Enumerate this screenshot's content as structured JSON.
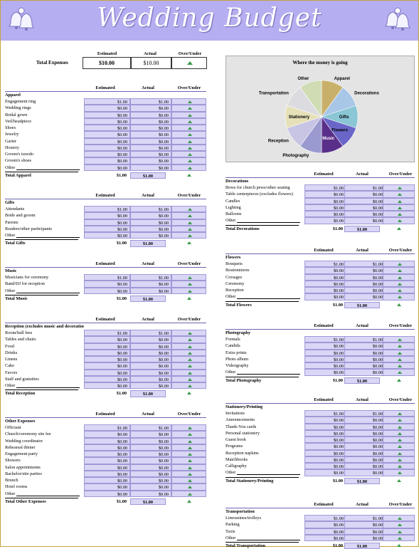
{
  "header": {
    "title": "Wedding Budget"
  },
  "summary": {
    "col_estimated": "Estimated",
    "col_actual": "Actual",
    "col_over_under": "Over/Under",
    "label": "Total Expenses",
    "estimated": "$10.00",
    "actual": "$10.00"
  },
  "chart_data": {
    "type": "pie",
    "title": "Where the money is going",
    "categories": [
      "Apparel",
      "Decorations",
      "Gifts",
      "Flowers",
      "Music",
      "Photography",
      "Reception",
      "Stationery",
      "Transportation",
      "Other"
    ],
    "values": [
      1,
      1,
      1,
      1,
      1,
      1,
      1,
      1,
      1,
      1
    ],
    "colors": [
      "#c9b06a",
      "#a8c6e8",
      "#8ac6d4",
      "#6a66c8",
      "#5a2f8a",
      "#9a9ad0",
      "#c8c4e4",
      "#e6e0b8",
      "#dcdce0",
      "#cfdcb4"
    ]
  },
  "sections": [
    {
      "col": 0,
      "top": 119,
      "title": "Apparel",
      "cols": [
        "Estimated",
        "Actual",
        "Over/Under"
      ],
      "items": [
        {
          "n": "Engagement ring",
          "e": "$1.00",
          "a": "$1.00"
        },
        {
          "n": "Wedding rings",
          "e": "$0.00",
          "a": "$0.00"
        },
        {
          "n": "Bridal gown",
          "e": "$0.00",
          "a": "$0.00"
        },
        {
          "n": "Veil/headpiece",
          "e": "$0.00",
          "a": "$0.00"
        },
        {
          "n": "Shoes",
          "e": "$0.00",
          "a": "$0.00"
        },
        {
          "n": "Jewelry",
          "e": "$0.00",
          "a": "$0.00"
        },
        {
          "n": "Garter",
          "e": "$0.00",
          "a": "$0.00"
        },
        {
          "n": "Hosiery",
          "e": "$0.00",
          "a": "$0.00"
        },
        {
          "n": "Groom's tuxedo",
          "e": "$0.00",
          "a": "$0.00"
        },
        {
          "n": "Groom's shoes",
          "e": "$0.00",
          "a": "$0.00"
        },
        {
          "n": "Other",
          "e": "$0.00",
          "a": "$0.00"
        }
      ],
      "total_label": "Total Apparel",
      "total_e": "$1.00",
      "total_a": "$1.00"
    },
    {
      "col": 0,
      "top": 270,
      "title": "Gifts",
      "cols": [
        "Estimated",
        "Actual",
        "Over/Under"
      ],
      "items": [
        {
          "n": "Attendants",
          "e": "$1.00",
          "a": "$1.00"
        },
        {
          "n": "Bride and groom",
          "e": "$0.00",
          "a": "$0.00"
        },
        {
          "n": "Parents",
          "e": "$0.00",
          "a": "$0.00"
        },
        {
          "n": "Readers/other participants",
          "e": "$0.00",
          "a": "$0.00"
        },
        {
          "n": "Other",
          "e": "$0.00",
          "a": "$0.00"
        }
      ],
      "total_label": "Total Gifts",
      "total_e": "$1.00",
      "total_a": "$1.00"
    },
    {
      "col": 0,
      "top": 366,
      "title": "Music",
      "cols": [
        "Estimated",
        "Actual",
        "Over/Under"
      ],
      "items": [
        {
          "n": "Musicians for ceremony",
          "e": "$1.00",
          "a": "$1.00"
        },
        {
          "n": "Band/DJ for reception",
          "e": "$0.00",
          "a": "$0.00"
        },
        {
          "n": "Other",
          "e": "$0.00",
          "a": "$0.00"
        }
      ],
      "total_label": "Total Music",
      "total_e": "$1.00",
      "total_a": "$1.00"
    },
    {
      "col": 0,
      "top": 444,
      "title": "Reception (excludes music and decorations)",
      "cols": [
        "Estimated",
        "Actual",
        "Over/Under"
      ],
      "items": [
        {
          "n": "Room/hall fees",
          "e": "$1.00",
          "a": "$1.00"
        },
        {
          "n": "Tables and chairs",
          "e": "$0.00",
          "a": "$0.00"
        },
        {
          "n": "Food",
          "e": "$0.00",
          "a": "$0.00"
        },
        {
          "n": "Drinks",
          "e": "$0.00",
          "a": "$0.00"
        },
        {
          "n": "Linens",
          "e": "$0.00",
          "a": "$0.00"
        },
        {
          "n": "Cake",
          "e": "$0.00",
          "a": "$0.00"
        },
        {
          "n": "Favors",
          "e": "$0.00",
          "a": "$0.00"
        },
        {
          "n": "Staff and gratuities",
          "e": "$0.00",
          "a": "$0.00"
        },
        {
          "n": "Other",
          "e": "$0.00",
          "a": "$0.00"
        }
      ],
      "total_label": "Total Reception",
      "total_e": "$1.00",
      "total_a": "$1.00"
    },
    {
      "col": 0,
      "top": 577,
      "title": "Other Expenses",
      "cols": [
        "Estimated",
        "Actual",
        "Over/Under"
      ],
      "items": [
        {
          "n": "Officiant",
          "e": "$1.00",
          "a": "$1.00"
        },
        {
          "n": "Church/ceremony site fee",
          "e": "$0.00",
          "a": "$0.00"
        },
        {
          "n": "Wedding coordinator",
          "e": "$0.00",
          "a": "$0.00"
        },
        {
          "n": "Rehearsal dinner",
          "e": "$0.00",
          "a": "$0.00"
        },
        {
          "n": "Engagement party",
          "e": "$0.00",
          "a": "$0.00"
        },
        {
          "n": "Showers",
          "e": "$0.00",
          "a": "$0.00"
        },
        {
          "n": "Salon appointments",
          "e": "$0.00",
          "a": "$0.00"
        },
        {
          "n": "Bachelor/ette parties",
          "e": "$0.00",
          "a": "$0.00"
        },
        {
          "n": "Brunch",
          "e": "$0.00",
          "a": "$0.00"
        },
        {
          "n": "Hotel rooms",
          "e": "$0.00",
          "a": "$0.00"
        },
        {
          "n": "Other",
          "e": "$0.00",
          "a": "$0.00"
        }
      ],
      "total_label": "Total Other Expenses",
      "total_e": "$1.00",
      "total_a": "$1.00"
    },
    {
      "col": 1,
      "top": 240,
      "title": "Decorations",
      "cols": [
        "Estimated",
        "Actual",
        "Over/Under"
      ],
      "items": [
        {
          "n": "Bows for church pews/other seating",
          "e": "$1.00",
          "a": "$1.00"
        },
        {
          "n": "Table centerpieces (excludes flowers)",
          "e": "$0.00",
          "a": "$0.00"
        },
        {
          "n": "Candles",
          "e": "$0.00",
          "a": "$0.00"
        },
        {
          "n": "Lighting",
          "e": "$0.00",
          "a": "$0.00"
        },
        {
          "n": "Balloons",
          "e": "$0.00",
          "a": "$0.00"
        },
        {
          "n": "Other",
          "e": "$0.00",
          "a": "$0.00"
        }
      ],
      "total_label": "Total Decorations",
      "total_e": "$1.00",
      "total_a": "$1.00"
    },
    {
      "col": 1,
      "top": 347,
      "title": "Flowers",
      "cols": [
        "Estimated",
        "Actual",
        "Over/Under"
      ],
      "items": [
        {
          "n": "Bouquets",
          "e": "$1.00",
          "a": "$1.00"
        },
        {
          "n": "Boutonnieres",
          "e": "$0.00",
          "a": "$0.00"
        },
        {
          "n": "Corsages",
          "e": "$0.00",
          "a": "$0.00"
        },
        {
          "n": "Ceremony",
          "e": "$0.00",
          "a": "$0.00"
        },
        {
          "n": "Reception",
          "e": "$0.00",
          "a": "$0.00"
        },
        {
          "n": "Other",
          "e": "$0.00",
          "a": "$0.00"
        }
      ],
      "total_label": "Total Flowers",
      "total_e": "$1.00",
      "total_a": "$1.00"
    },
    {
      "col": 1,
      "top": 453,
      "title": "Photography",
      "cols": [
        "Estimated",
        "Actual",
        "Over/Under"
      ],
      "items": [
        {
          "n": "Formals",
          "e": "$1.00",
          "a": "$1.00"
        },
        {
          "n": "Candids",
          "e": "$0.00",
          "a": "$0.00"
        },
        {
          "n": "Extra prints",
          "e": "$0.00",
          "a": "$0.00"
        },
        {
          "n": "Photo album",
          "e": "$0.00",
          "a": "$0.00"
        },
        {
          "n": "Videography",
          "e": "$0.00",
          "a": "$0.00"
        },
        {
          "n": "Other",
          "e": "$0.00",
          "a": "$0.00"
        }
      ],
      "total_label": "Total Photography",
      "total_e": "$1.00",
      "total_a": "$1.00"
    },
    {
      "col": 1,
      "top": 557,
      "title": "Stationery/Printing",
      "cols": [
        "Estimated",
        "Actual",
        "Over/Under"
      ],
      "items": [
        {
          "n": "Invitations",
          "e": "$1.00",
          "a": "$1.00"
        },
        {
          "n": "Announcements",
          "e": "$0.00",
          "a": "$0.00"
        },
        {
          "n": "Thank-You cards",
          "e": "$0.00",
          "a": "$0.00"
        },
        {
          "n": "Personal stationery",
          "e": "$0.00",
          "a": "$0.00"
        },
        {
          "n": "Guest book",
          "e": "$0.00",
          "a": "$0.00"
        },
        {
          "n": "Programs",
          "e": "$0.00",
          "a": "$0.00"
        },
        {
          "n": "Reception napkins",
          "e": "$0.00",
          "a": "$0.00"
        },
        {
          "n": "Matchbooks",
          "e": "$0.00",
          "a": "$0.00"
        },
        {
          "n": "Calligraphy",
          "e": "$0.00",
          "a": "$0.00"
        },
        {
          "n": "Other",
          "e": "$0.00",
          "a": "$0.00"
        }
      ],
      "total_label": "Total Stationery/Printing",
      "total_e": "$1.00",
      "total_a": "$1.00"
    },
    {
      "col": 1,
      "top": 704,
      "title": "Transportation",
      "cols": [
        "Estimated",
        "Actual",
        "Over/Under"
      ],
      "items": [
        {
          "n": "Limousines/trolleys",
          "e": "$1.00",
          "a": "$1.00"
        },
        {
          "n": "Parking",
          "e": "$0.00",
          "a": "$0.00"
        },
        {
          "n": "Taxis",
          "e": "$0.00",
          "a": "$0.00"
        },
        {
          "n": "Other",
          "e": "$0.00",
          "a": "$0.00"
        }
      ],
      "total_label": "Total Transportation",
      "total_e": "$1.00",
      "total_a": "$1.00"
    }
  ]
}
